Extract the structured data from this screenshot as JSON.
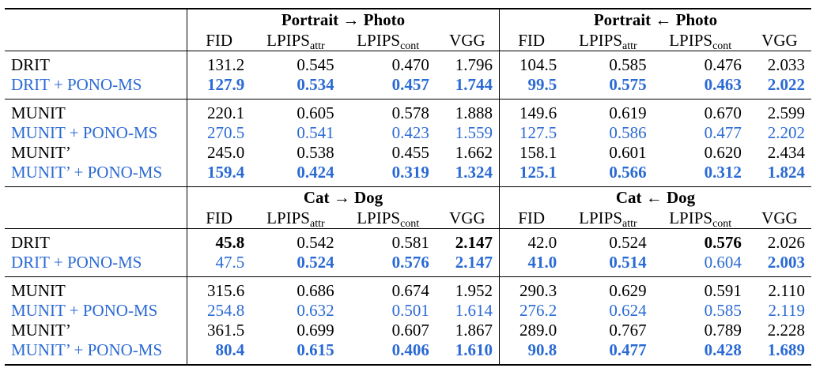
{
  "sections": [
    {
      "group_left": "Portrait → Photo",
      "group_right": "Portrait ← Photo",
      "blocks": [
        [
          {
            "method": "DRIT",
            "pono": false,
            "values": [
              "131.2",
              "0.545",
              "0.470",
              "1.796",
              "104.5",
              "0.585",
              "0.476",
              "2.033"
            ],
            "bold": [
              false,
              false,
              false,
              false,
              false,
              false,
              false,
              false
            ]
          },
          {
            "method": "DRIT + PONO-MS",
            "pono": true,
            "values": [
              "127.9",
              "0.534",
              "0.457",
              "1.744",
              "99.5",
              "0.575",
              "0.463",
              "2.022"
            ],
            "bold": [
              true,
              true,
              true,
              true,
              true,
              true,
              true,
              true
            ]
          }
        ],
        [
          {
            "method": "MUNIT",
            "pono": false,
            "values": [
              "220.1",
              "0.605",
              "0.578",
              "1.888",
              "149.6",
              "0.619",
              "0.670",
              "2.599"
            ],
            "bold": [
              false,
              false,
              false,
              false,
              false,
              false,
              false,
              false
            ]
          },
          {
            "method": "MUNIT + PONO-MS",
            "pono": true,
            "values": [
              "270.5",
              "0.541",
              "0.423",
              "1.559",
              "127.5",
              "0.586",
              "0.477",
              "2.202"
            ],
            "bold": [
              false,
              false,
              false,
              false,
              false,
              false,
              false,
              false
            ]
          },
          {
            "method": "MUNIT’",
            "pono": false,
            "values": [
              "245.0",
              "0.538",
              "0.455",
              "1.662",
              "158.1",
              "0.601",
              "0.620",
              "2.434"
            ],
            "bold": [
              false,
              false,
              false,
              false,
              false,
              false,
              false,
              false
            ]
          },
          {
            "method": "MUNIT’ + PONO-MS",
            "pono": true,
            "values": [
              "159.4",
              "0.424",
              "0.319",
              "1.324",
              "125.1",
              "0.566",
              "0.312",
              "1.824"
            ],
            "bold": [
              true,
              true,
              true,
              true,
              true,
              true,
              true,
              true
            ]
          }
        ]
      ]
    },
    {
      "group_left": "Cat → Dog",
      "group_right": "Cat ← Dog",
      "blocks": [
        [
          {
            "method": "DRIT",
            "pono": false,
            "values": [
              "45.8",
              "0.542",
              "0.581",
              "2.147",
              "42.0",
              "0.524",
              "0.576",
              "2.026"
            ],
            "bold": [
              true,
              false,
              false,
              true,
              false,
              false,
              true,
              false
            ]
          },
          {
            "method": "DRIT + PONO-MS",
            "pono": true,
            "values": [
              "47.5",
              "0.524",
              "0.576",
              "2.147",
              "41.0",
              "0.514",
              "0.604",
              "2.003"
            ],
            "bold": [
              false,
              true,
              true,
              true,
              true,
              true,
              false,
              true
            ]
          }
        ],
        [
          {
            "method": "MUNIT",
            "pono": false,
            "values": [
              "315.6",
              "0.686",
              "0.674",
              "1.952",
              "290.3",
              "0.629",
              "0.591",
              "2.110"
            ],
            "bold": [
              false,
              false,
              false,
              false,
              false,
              false,
              false,
              false
            ]
          },
          {
            "method": "MUNIT + PONO-MS",
            "pono": true,
            "values": [
              "254.8",
              "0.632",
              "0.501",
              "1.614",
              "276.2",
              "0.624",
              "0.585",
              "2.119"
            ],
            "bold": [
              false,
              false,
              false,
              false,
              false,
              false,
              false,
              false
            ]
          },
          {
            "method": "MUNIT’",
            "pono": false,
            "values": [
              "361.5",
              "0.699",
              "0.607",
              "1.867",
              "289.0",
              "0.767",
              "0.789",
              "2.228"
            ],
            "bold": [
              false,
              false,
              false,
              false,
              false,
              false,
              false,
              false
            ]
          },
          {
            "method": "MUNIT’ + PONO-MS",
            "pono": true,
            "values": [
              "80.4",
              "0.615",
              "0.406",
              "1.610",
              "90.8",
              "0.477",
              "0.428",
              "1.689"
            ],
            "bold": [
              true,
              true,
              true,
              true,
              true,
              true,
              true,
              true
            ]
          }
        ]
      ]
    }
  ],
  "metric_headers": [
    {
      "base": "FID",
      "sub": ""
    },
    {
      "base": "LPIPS",
      "sub": "attr"
    },
    {
      "base": "LPIPS",
      "sub": "cont"
    },
    {
      "base": "VGG",
      "sub": ""
    }
  ],
  "colors": {
    "pono_method": "#2a6ad4",
    "text": "#000000"
  }
}
